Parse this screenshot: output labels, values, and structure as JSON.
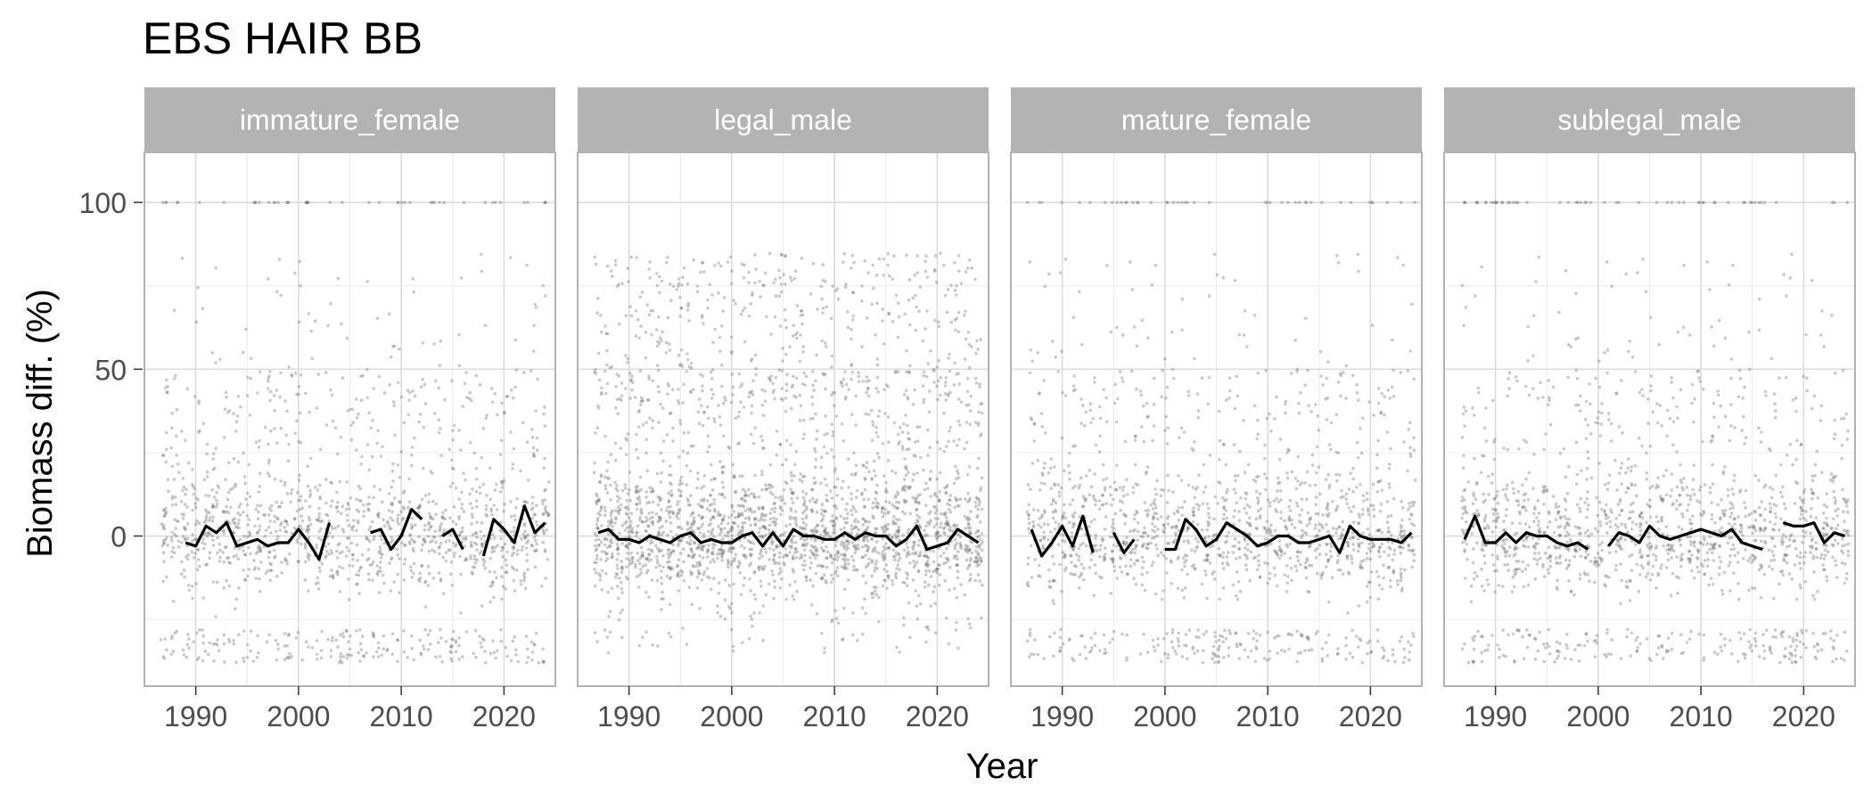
{
  "chart_data": {
    "type": "scatter",
    "title": "EBS HAIR BB",
    "xlabel": "Year",
    "ylabel": "Biomass diff. (%)",
    "xlim": [
      1985,
      2025
    ],
    "ylim": [
      -45,
      115
    ],
    "x_ticks": [
      1990,
      2000,
      2010,
      2020
    ],
    "y_ticks": [
      0,
      50,
      100
    ],
    "colors": {
      "strip_bg": "#b3b3b3",
      "strip_text": "#ffffff",
      "grid_major": "#dcdcdc",
      "grid_minor": "#ececec",
      "panel_border": "#b3b3b3",
      "points": "#666666",
      "line": "#000000"
    },
    "panels": [
      {
        "name": "immature_female",
        "line_segments": [
          {
            "x": [
              1989,
              1990,
              1991,
              1992,
              1993,
              1994,
              1995,
              1996,
              1997,
              1998,
              1999,
              2000,
              2001,
              2002,
              2003
            ],
            "y": [
              -2,
              -3,
              3,
              1,
              4,
              -3,
              -2,
              -1,
              -3,
              -2,
              -2,
              2,
              -2,
              -7,
              4
            ]
          },
          {
            "x": [
              2007,
              2008,
              2009,
              2010,
              2011,
              2012
            ],
            "y": [
              1,
              2,
              -4,
              0,
              8,
              5
            ]
          },
          {
            "x": [
              2014,
              2015,
              2016
            ],
            "y": [
              0,
              2,
              -4
            ]
          },
          {
            "x": [
              2018,
              2019,
              2020,
              2021,
              2022,
              2023,
              2024
            ],
            "y": [
              -6,
              5,
              2,
              -2,
              9,
              1,
              4
            ]
          }
        ]
      },
      {
        "name": "legal_male",
        "line_segments": [
          {
            "x": [
              1987,
              1988,
              1989,
              1990,
              1991,
              1992,
              1993,
              1994,
              1995,
              1996,
              1997,
              1998,
              1999,
              2000,
              2001,
              2002,
              2003,
              2004,
              2005,
              2006,
              2007,
              2008,
              2009,
              2010,
              2011,
              2012,
              2013,
              2014,
              2015,
              2016,
              2017,
              2018,
              2019,
              2020,
              2021,
              2022,
              2023,
              2024
            ],
            "y": [
              1,
              2,
              -1,
              -1,
              -2,
              0,
              -1,
              -2,
              0,
              1,
              -2,
              -1,
              -2,
              -2,
              0,
              1,
              -3,
              1,
              -3,
              2,
              0,
              0,
              -1,
              -1,
              1,
              -1,
              1,
              0,
              0,
              -3,
              -1,
              3,
              -4,
              -3,
              -2,
              2,
              0,
              -2
            ]
          }
        ]
      },
      {
        "name": "mature_female",
        "line_segments": [
          {
            "x": [
              1987,
              1988,
              1989,
              1990,
              1991,
              1992,
              1993
            ],
            "y": [
              2,
              -6,
              -2,
              3,
              -3,
              6,
              -5
            ]
          },
          {
            "x": [
              1995,
              1996,
              1997
            ],
            "y": [
              1,
              -5,
              -1
            ]
          },
          {
            "x": [
              2000,
              2001,
              2002,
              2003,
              2004,
              2005,
              2006,
              2007,
              2008,
              2009,
              2010,
              2011,
              2012,
              2013,
              2014,
              2015,
              2016,
              2017,
              2018,
              2019,
              2020,
              2021,
              2022,
              2023,
              2024
            ],
            "y": [
              -4,
              -4,
              5,
              2,
              -3,
              -1,
              4,
              2,
              0,
              -3,
              -2,
              0,
              0,
              -2,
              -2,
              -1,
              0,
              -5,
              3,
              0,
              -1,
              -1,
              -1,
              -2,
              1
            ]
          }
        ]
      },
      {
        "name": "sublegal_male",
        "line_segments": [
          {
            "x": [
              1987,
              1988,
              1989,
              1990,
              1991,
              1992,
              1993,
              1994,
              1995,
              1996,
              1997,
              1998,
              1999
            ],
            "y": [
              -1,
              6,
              -2,
              -2,
              1,
              -2,
              1,
              0,
              0,
              -2,
              -3,
              -2,
              -4
            ]
          },
          {
            "x": [
              2001,
              2002,
              2003,
              2004,
              2005,
              2006,
              2007,
              2008,
              2009,
              2010,
              2011,
              2012,
              2013,
              2014,
              2015,
              2016
            ],
            "y": [
              -3,
              1,
              0,
              -2,
              3,
              0,
              -1,
              0,
              1,
              2,
              1,
              0,
              2,
              -2,
              -3,
              -4
            ]
          },
          {
            "x": [
              2018,
              2019,
              2020,
              2021,
              2022,
              2023,
              2024
            ],
            "y": [
              4,
              3,
              3,
              4,
              -2,
              1,
              0
            ]
          }
        ]
      }
    ]
  }
}
